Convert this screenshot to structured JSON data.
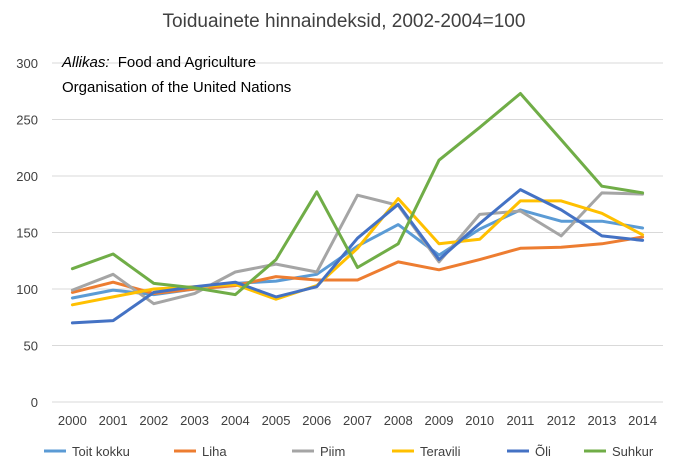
{
  "chart_data": {
    "type": "line",
    "title": "Toiduainete hinnaindeksid, 2002-2004=100",
    "source_label": "Allikas:",
    "source_text_line1": "Food and Agriculture",
    "source_text_line2": "Organisation of the United Nations",
    "xlabel": "",
    "ylabel": "",
    "x": [
      "2000",
      "2001",
      "2002",
      "2003",
      "2004",
      "2005",
      "2006",
      "2007",
      "2008",
      "2009",
      "2010",
      "2011",
      "2012",
      "2013",
      "2014"
    ],
    "ylim": [
      0,
      300
    ],
    "yticks": [
      0,
      50,
      100,
      150,
      200,
      250,
      300
    ],
    "grid": true,
    "legend_position": "bottom",
    "series": [
      {
        "name": "Toit kokku",
        "color": "#5B9BD5",
        "values": [
          92,
          99,
          95,
          100,
          105,
          107,
          113,
          138,
          157,
          130,
          153,
          170,
          160,
          160,
          154
        ]
      },
      {
        "name": "Liha",
        "color": "#ED7D31",
        "values": [
          97,
          106,
          96,
          100,
          103,
          111,
          108,
          108,
          124,
          117,
          126,
          136,
          137,
          140,
          146
        ]
      },
      {
        "name": "Piim",
        "color": "#A5A5A5",
        "values": [
          99,
          113,
          87,
          96,
          115,
          122,
          115,
          183,
          174,
          124,
          166,
          169,
          147,
          185,
          184
        ]
      },
      {
        "name": "Teravili",
        "color": "#FFC000",
        "values": [
          86,
          93,
          100,
          102,
          104,
          91,
          103,
          136,
          180,
          140,
          144,
          178,
          178,
          167,
          148
        ]
      },
      {
        "name": "Õli",
        "color": "#4472C4",
        "values": [
          70,
          72,
          97,
          102,
          106,
          93,
          102,
          145,
          175,
          126,
          158,
          188,
          170,
          147,
          143
        ]
      },
      {
        "name": "Suhkur",
        "color": "#70AD47",
        "values": [
          118,
          131,
          105,
          101,
          95,
          126,
          186,
          119,
          140,
          214,
          243,
          273,
          232,
          191,
          185
        ]
      }
    ]
  }
}
